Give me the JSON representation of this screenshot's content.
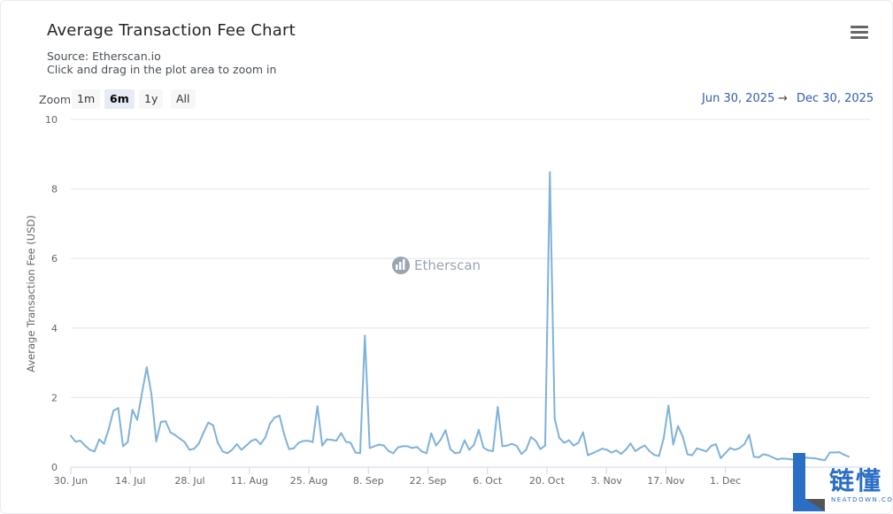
{
  "title": "Average Transaction Fee Chart",
  "source": "Source: Etherscan.io",
  "hint": "Click and drag in the plot area to zoom in",
  "zoom": {
    "label": "Zoom",
    "buttons": [
      "1m",
      "6m",
      "1y",
      "All"
    ],
    "active": "6m"
  },
  "range": {
    "from": "Jun 30, 2025",
    "arrow": "→",
    "to": "Dec 30, 2025"
  },
  "watermark": "Etherscan",
  "logo": {
    "text": "链懂",
    "sub": "NEATDOWN.COM"
  },
  "colors": {
    "line": "#7fb2d9",
    "grid": "#e6e6e6",
    "accent": "#335cad"
  },
  "icons": {
    "menu": "hamburger-menu-icon",
    "watermark": "etherscan-logo-icon"
  },
  "chart_data": {
    "type": "line",
    "ylabel": "Average Transaction Fee (USD)",
    "ylim": [
      0,
      10
    ],
    "yticks": [
      "0",
      "2",
      "4",
      "6",
      "8",
      "10"
    ],
    "xstart": "2025-06-30",
    "xend": "2025-12-30",
    "xticks": [
      "30. Jun",
      "14. Jul",
      "28. Jul",
      "11. Aug",
      "25. Aug",
      "8. Sep",
      "22. Sep",
      "6. Oct",
      "20. Oct",
      "3. Nov",
      "17. Nov",
      "1. Dec"
    ],
    "grid": true,
    "series": [
      {
        "values": [
          0.9,
          0.73,
          0.76,
          0.62,
          0.5,
          0.45,
          0.8,
          0.67,
          1.1,
          1.62,
          1.7,
          0.6,
          0.72,
          1.65,
          1.36,
          2.12,
          2.87,
          2.1,
          0.74,
          1.3,
          1.32,
          1.0,
          0.92,
          0.82,
          0.72,
          0.5,
          0.53,
          0.68,
          1.0,
          1.28,
          1.2,
          0.7,
          0.45,
          0.4,
          0.5,
          0.66,
          0.5,
          0.62,
          0.75,
          0.8,
          0.66,
          0.85,
          1.25,
          1.43,
          1.48,
          0.93,
          0.52,
          0.54,
          0.7,
          0.75,
          0.76,
          0.72,
          1.75,
          0.62,
          0.8,
          0.78,
          0.76,
          0.98,
          0.73,
          0.7,
          0.42,
          0.4,
          3.78,
          0.55,
          0.6,
          0.65,
          0.62,
          0.46,
          0.4,
          0.57,
          0.6,
          0.6,
          0.55,
          0.58,
          0.45,
          0.4,
          0.97,
          0.62,
          0.8,
          1.06,
          0.52,
          0.4,
          0.42,
          0.77,
          0.5,
          0.64,
          1.07,
          0.56,
          0.48,
          0.46,
          1.73,
          0.6,
          0.62,
          0.67,
          0.61,
          0.38,
          0.5,
          0.86,
          0.76,
          0.52,
          0.62,
          8.48,
          1.4,
          0.84,
          0.7,
          0.77,
          0.62,
          0.7,
          1.0,
          0.34,
          0.4,
          0.46,
          0.53,
          0.5,
          0.42,
          0.48,
          0.38,
          0.5,
          0.68,
          0.46,
          0.55,
          0.62,
          0.46,
          0.35,
          0.32,
          0.84,
          1.77,
          0.65,
          1.18,
          0.88,
          0.37,
          0.34,
          0.54,
          0.5,
          0.45,
          0.61,
          0.66,
          0.26,
          0.4,
          0.55,
          0.5,
          0.55,
          0.66,
          0.93,
          0.3,
          0.28,
          0.37,
          0.34,
          0.28,
          0.22,
          0.25,
          0.24,
          0.22,
          0.22,
          0.3,
          0.27,
          0.26,
          0.25,
          0.22,
          0.2,
          0.42,
          0.42,
          0.43,
          0.36,
          0.3
        ]
      }
    ]
  }
}
